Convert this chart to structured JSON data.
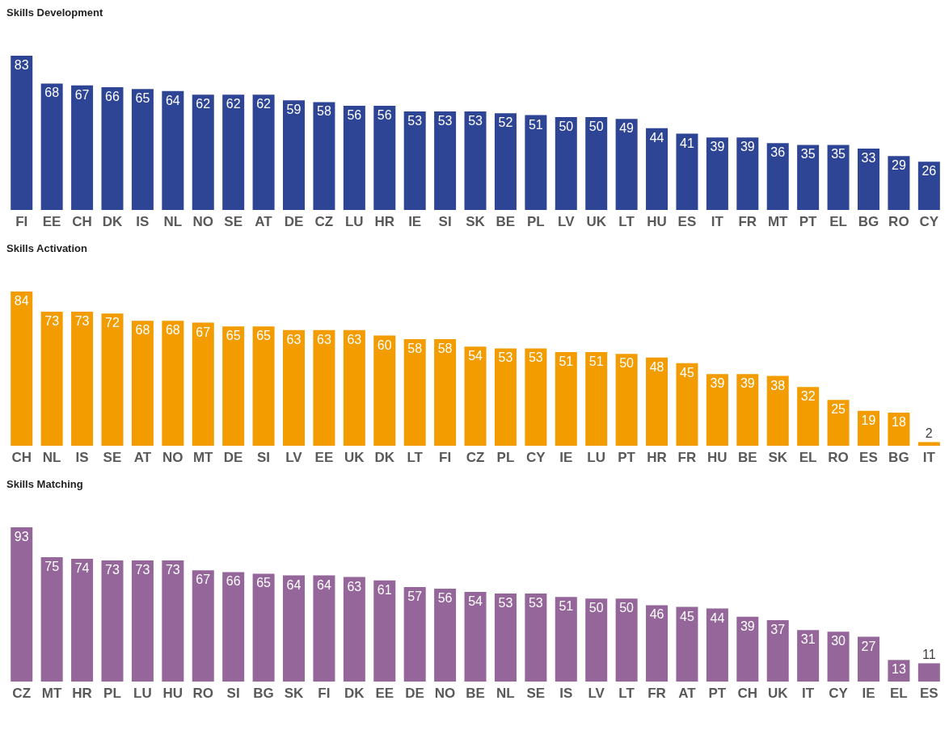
{
  "chart_data": [
    {
      "type": "bar",
      "title": "Skills Development",
      "categories": [
        "FI",
        "EE",
        "CH",
        "DK",
        "IS",
        "NL",
        "NO",
        "SE",
        "AT",
        "DE",
        "CZ",
        "LU",
        "HR",
        "IE",
        "SI",
        "SK",
        "BE",
        "PL",
        "LV",
        "UK",
        "LT",
        "HU",
        "ES",
        "IT",
        "FR",
        "MT",
        "PT",
        "EL",
        "BG",
        "RO",
        "CY"
      ],
      "values": [
        83,
        68,
        67,
        66,
        65,
        64,
        62,
        62,
        62,
        59,
        58,
        56,
        56,
        53,
        53,
        53,
        52,
        51,
        50,
        50,
        49,
        44,
        41,
        39,
        39,
        36,
        35,
        35,
        33,
        29,
        26
      ],
      "color": "#2e4494",
      "data_labels": true,
      "tick_labels": "x"
    },
    {
      "type": "bar",
      "title": "Skills Activation",
      "categories": [
        "CH",
        "NL",
        "IS",
        "SE",
        "AT",
        "NO",
        "MT",
        "DE",
        "SI",
        "LV",
        "EE",
        "UK",
        "DK",
        "LT",
        "FI",
        "CZ",
        "PL",
        "CY",
        "IE",
        "LU",
        "PT",
        "HR",
        "FR",
        "HU",
        "BE",
        "SK",
        "EL",
        "RO",
        "ES",
        "BG",
        "IT"
      ],
      "values": [
        84,
        73,
        73,
        72,
        68,
        68,
        67,
        65,
        65,
        63,
        63,
        63,
        60,
        58,
        58,
        54,
        53,
        53,
        51,
        51,
        50,
        48,
        45,
        39,
        39,
        38,
        32,
        25,
        19,
        18,
        2
      ],
      "color": "#f39c00",
      "data_labels": true,
      "tick_labels": "x"
    },
    {
      "type": "bar",
      "title": "Skills Matching",
      "categories": [
        "CZ",
        "MT",
        "HR",
        "PL",
        "LU",
        "HU",
        "RO",
        "SI",
        "BG",
        "SK",
        "FI",
        "DK",
        "EE",
        "DE",
        "NO",
        "BE",
        "NL",
        "SE",
        "IS",
        "LV",
        "LT",
        "FR",
        "AT",
        "PT",
        "CH",
        "UK",
        "IT",
        "CY",
        "IE",
        "EL",
        "ES"
      ],
      "values": [
        93,
        75,
        74,
        73,
        73,
        73,
        67,
        66,
        65,
        64,
        64,
        63,
        61,
        57,
        56,
        54,
        53,
        53,
        51,
        50,
        50,
        46,
        45,
        44,
        39,
        37,
        31,
        30,
        27,
        13,
        11
      ],
      "color": "#94669a",
      "data_labels": true,
      "tick_labels": "x"
    }
  ]
}
